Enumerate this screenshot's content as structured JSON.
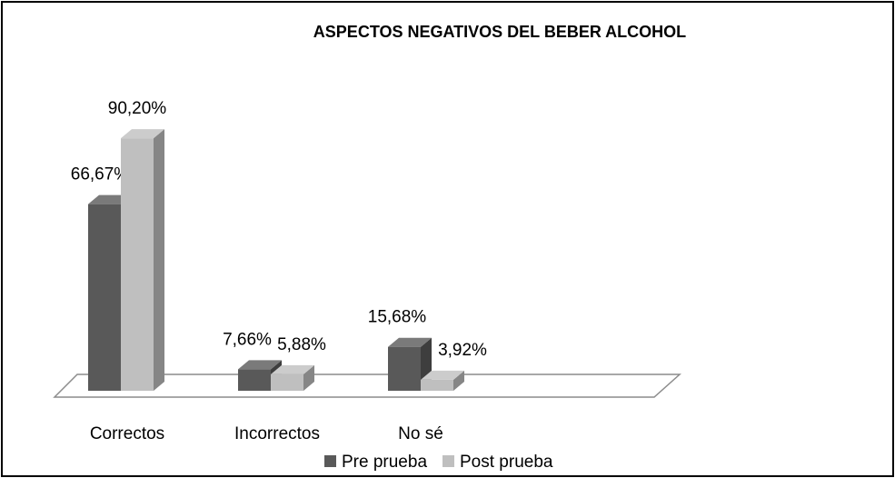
{
  "chart_data": {
    "type": "bar3d",
    "title": "ASPECTOS NEGATIVOS DEL BEBER ALCOHOL",
    "categories": [
      "Correctos",
      "Incorrectos",
      "No sé"
    ],
    "series": [
      {
        "name": "Pre prueba",
        "color": "#595959",
        "values": [
          66.67,
          7.66,
          15.68
        ],
        "value_labels": [
          "66,67%",
          "7,66%",
          "15,68%"
        ]
      },
      {
        "name": "Post prueba",
        "color": "#bfbfbf",
        "values": [
          90.2,
          5.88,
          3.92
        ],
        "value_labels": [
          "90,20%",
          "5,88%",
          "3,92%"
        ]
      }
    ],
    "legend": "bottom"
  }
}
